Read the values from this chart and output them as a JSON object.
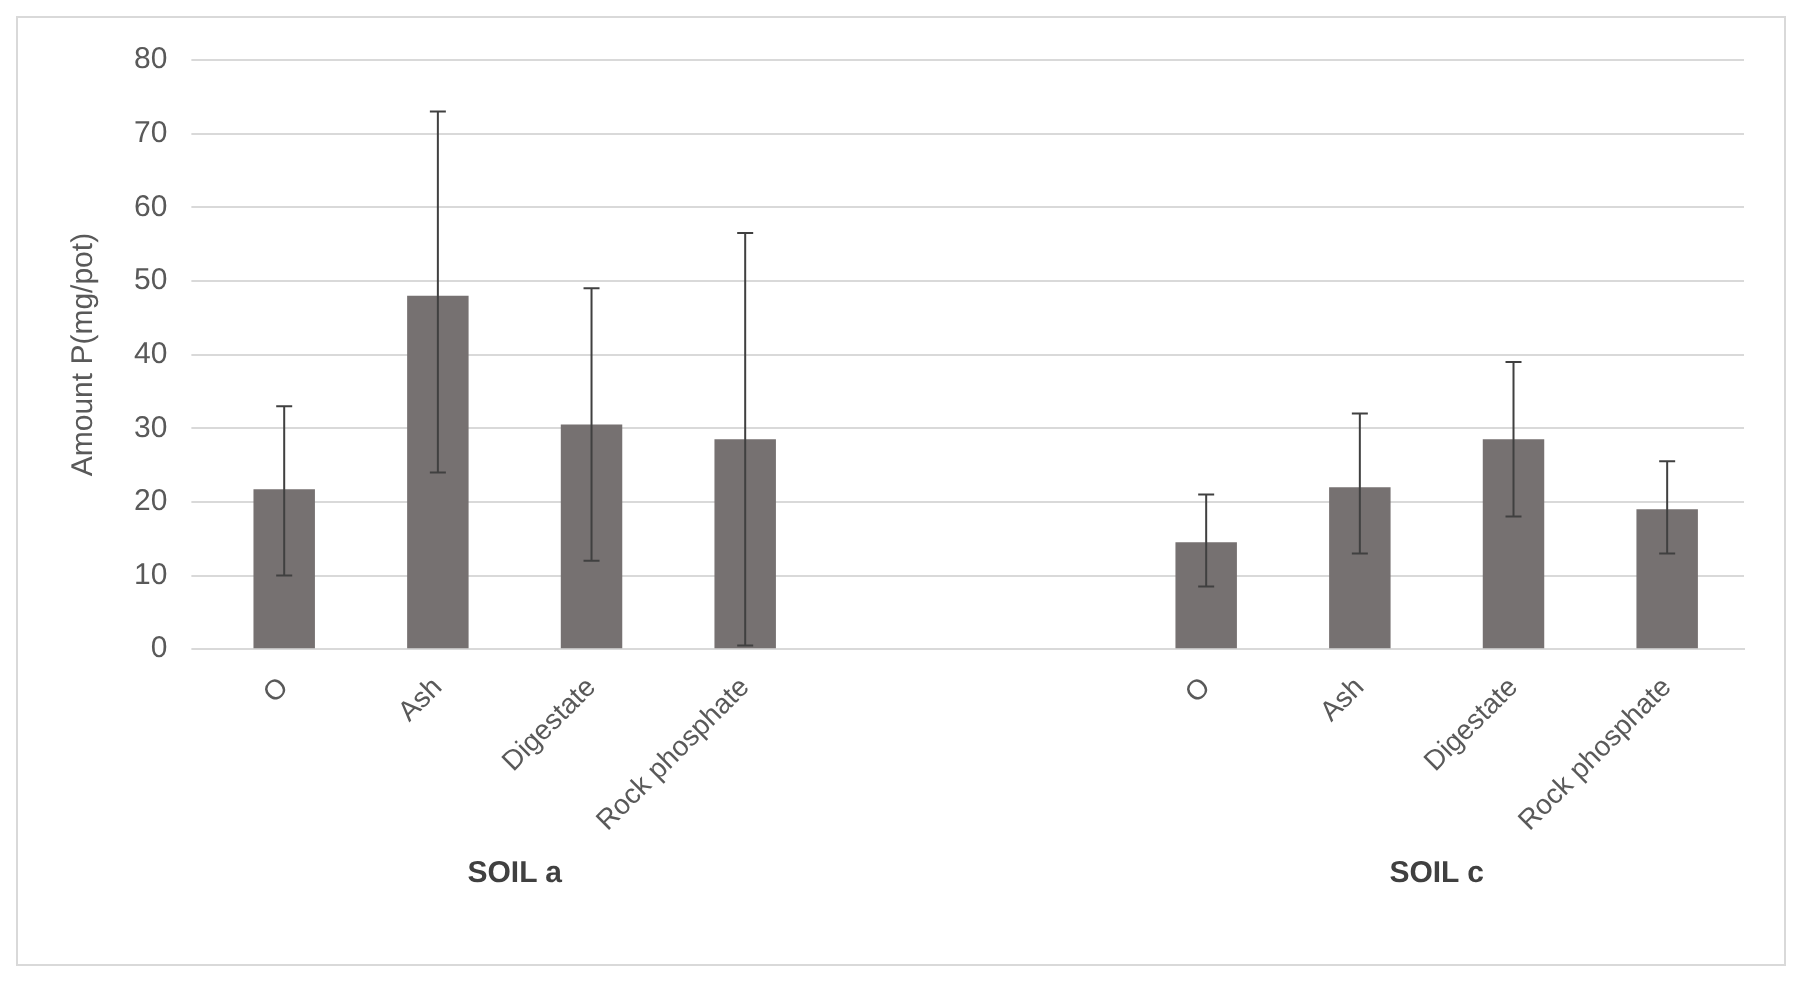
{
  "chart_data": {
    "type": "bar",
    "ylabel": "Amount P(mg/pot)",
    "categories": [
      "O",
      "Ash",
      "Digestate",
      "Rock phosphate",
      null,
      null,
      "O",
      "Ash",
      "Digestate",
      "Rock phosphate"
    ],
    "values": [
      21.7,
      48,
      30.5,
      28.5,
      null,
      null,
      14.5,
      22,
      28.5,
      19
    ],
    "errors": [
      [
        10,
        33
      ],
      [
        24,
        73
      ],
      [
        12,
        49
      ],
      [
        0.5,
        56.5
      ],
      null,
      null,
      [
        8.5,
        21
      ],
      [
        13,
        32
      ],
      [
        18,
        39
      ],
      [
        13,
        25.5
      ]
    ],
    "color": "#767171",
    "ylim": [
      0,
      80
    ],
    "yticks": [
      0,
      10,
      20,
      30,
      40,
      50,
      60,
      70,
      80
    ],
    "grid": "y",
    "annotations": [
      "SOIL a",
      "SOIL c"
    ]
  }
}
